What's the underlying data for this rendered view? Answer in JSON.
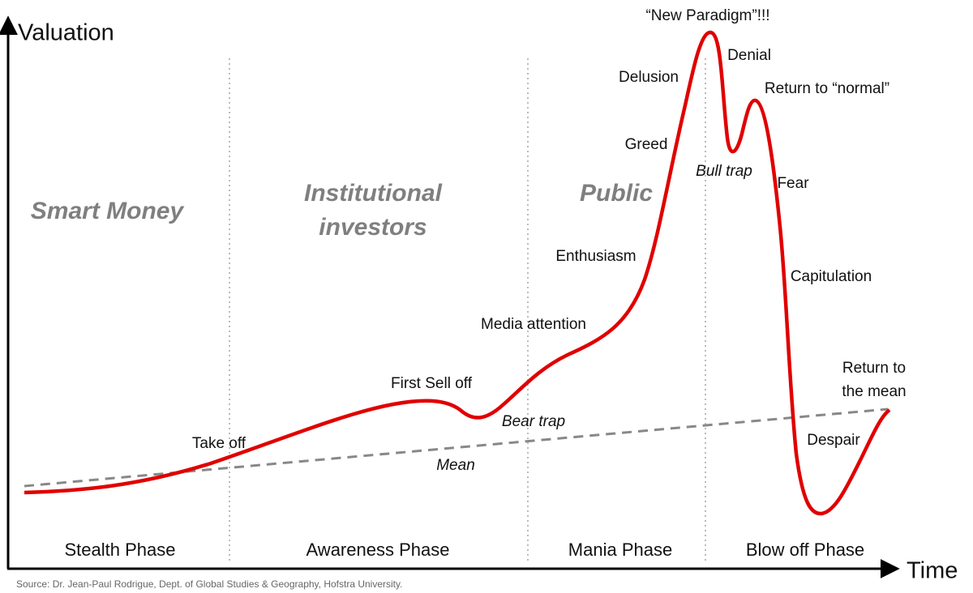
{
  "axes": {
    "y_label": "Valuation",
    "x_label": "Time"
  },
  "phases": [
    "Stealth Phase",
    "Awareness Phase",
    "Mania Phase",
    "Blow off Phase"
  ],
  "groups": {
    "smart_money": "Smart Money",
    "institutional": [
      "Institutional",
      "investors"
    ],
    "public": "Public"
  },
  "annotations": {
    "take_off": "Take off",
    "first_sell_off": "First Sell off",
    "bear_trap": "Bear trap",
    "mean": "Mean",
    "media_attention": "Media attention",
    "enthusiasm": "Enthusiasm",
    "greed": "Greed",
    "delusion": "Delusion",
    "new_paradigm": "“New Paradigm”!!!",
    "denial": "Denial",
    "return_to_normal": "Return to “normal”",
    "bull_trap": "Bull trap",
    "fear": "Fear",
    "capitulation": "Capitulation",
    "return_to_mean": [
      "Return to",
      "the mean"
    ],
    "despair": "Despair"
  },
  "source": "Source: Dr. Jean-Paul Rodrigue, Dept. of Global Studies & Geography, Hofstra University."
}
